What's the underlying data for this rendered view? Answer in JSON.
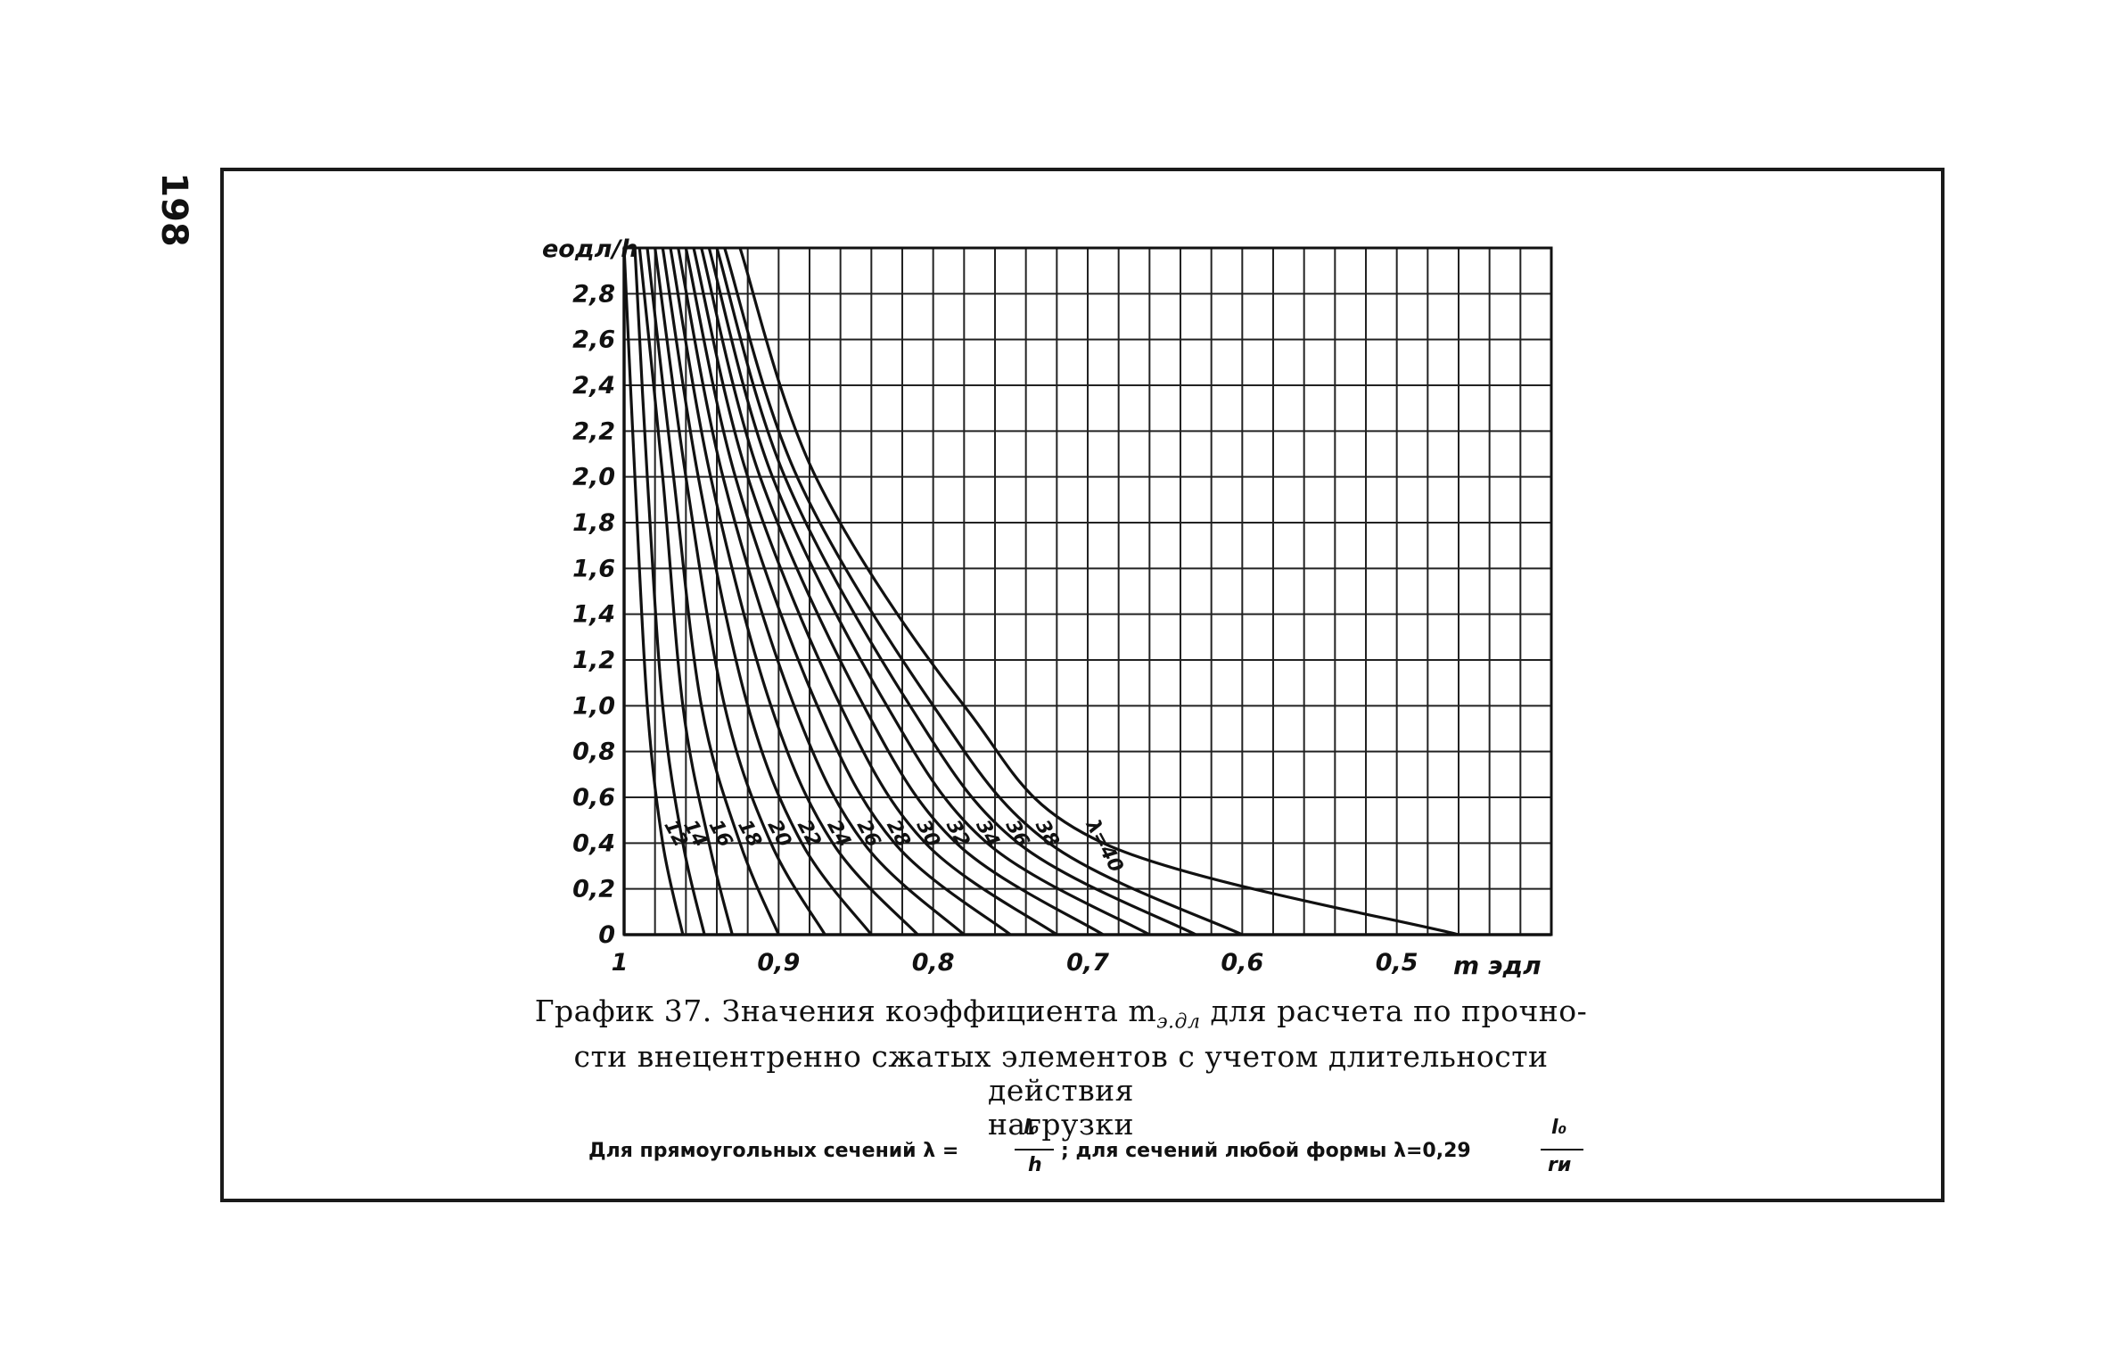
{
  "page_number": "198",
  "caption": {
    "line1": "График 37. Значения коэффициента m",
    "line1_subscript": "э.дл",
    "line1_end": " для расчета по прочно-",
    "line2": "сти внецентренно сжатых элементов с учетом длительности действия",
    "line3": "нагрузки"
  },
  "subnote": {
    "part1": "Для прямоугольных сечений λ =",
    "frac1_num": "l₀",
    "frac1_den": "h",
    "part2": ";   для сечений любой формы λ=0,29",
    "frac2_num": "l₀",
    "frac2_den": "rи"
  },
  "chart_data": {
    "type": "line",
    "title": "",
    "xlabel": "m эдл",
    "ylabel": "eодл/h",
    "xlim": [
      1.0,
      0.4
    ],
    "ylim": [
      0,
      3.0
    ],
    "x_reversed": true,
    "x_ticks": [
      "1",
      "0,9",
      "0,8",
      "0,7",
      "0,6",
      "0,5"
    ],
    "y_ticks": [
      "0",
      "0,2",
      "0,4",
      "0,6",
      "0,8",
      "1,0",
      "1,2",
      "1,4",
      "1,6",
      "1,8",
      "2,0",
      "2,2",
      "2,4",
      "2,6",
      "2,8"
    ],
    "grid": true,
    "series_label_prefix": "λ=",
    "series": [
      {
        "name": "12",
        "x": [
          1.0,
          0.993,
          0.985,
          0.975,
          0.962
        ],
        "y": [
          3.0,
          2.0,
          1.0,
          0.4,
          0.0
        ]
      },
      {
        "name": "14",
        "x": [
          0.993,
          0.985,
          0.975,
          0.962,
          0.948
        ],
        "y": [
          3.0,
          2.0,
          1.0,
          0.4,
          0.0
        ]
      },
      {
        "name": "16",
        "x": [
          0.99,
          0.975,
          0.962,
          0.945,
          0.93
        ],
        "y": [
          3.0,
          2.0,
          1.0,
          0.4,
          0.0
        ]
      },
      {
        "name": "18",
        "x": [
          0.985,
          0.968,
          0.95,
          0.925,
          0.9
        ],
        "y": [
          3.0,
          2.0,
          1.0,
          0.4,
          0.0
        ]
      },
      {
        "name": "20",
        "x": [
          0.98,
          0.96,
          0.935,
          0.905,
          0.87
        ],
        "y": [
          3.0,
          2.0,
          1.0,
          0.4,
          0.0
        ]
      },
      {
        "name": "22",
        "x": [
          0.975,
          0.952,
          0.92,
          0.885,
          0.84
        ],
        "y": [
          3.0,
          2.0,
          1.0,
          0.4,
          0.0
        ]
      },
      {
        "name": "24",
        "x": [
          0.97,
          0.944,
          0.905,
          0.865,
          0.81
        ],
        "y": [
          3.0,
          2.0,
          1.0,
          0.4,
          0.0
        ]
      },
      {
        "name": "26",
        "x": [
          0.965,
          0.936,
          0.89,
          0.845,
          0.78
        ],
        "y": [
          3.0,
          2.0,
          1.0,
          0.4,
          0.0
        ]
      },
      {
        "name": "28",
        "x": [
          0.96,
          0.928,
          0.875,
          0.825,
          0.75
        ],
        "y": [
          3.0,
          2.0,
          1.0,
          0.4,
          0.0
        ]
      },
      {
        "name": "30",
        "x": [
          0.955,
          0.92,
          0.86,
          0.805,
          0.72
        ],
        "y": [
          3.0,
          2.0,
          1.0,
          0.4,
          0.0
        ]
      },
      {
        "name": "32",
        "x": [
          0.95,
          0.912,
          0.845,
          0.785,
          0.69
        ],
        "y": [
          3.0,
          2.0,
          1.0,
          0.4,
          0.0
        ]
      },
      {
        "name": "34",
        "x": [
          0.945,
          0.904,
          0.83,
          0.765,
          0.66
        ],
        "y": [
          3.0,
          2.0,
          1.0,
          0.4,
          0.0
        ]
      },
      {
        "name": "36",
        "x": [
          0.94,
          0.896,
          0.815,
          0.745,
          0.63
        ],
        "y": [
          3.0,
          2.0,
          1.0,
          0.4,
          0.0
        ]
      },
      {
        "name": "38",
        "x": [
          0.935,
          0.888,
          0.8,
          0.725,
          0.6
        ],
        "y": [
          3.0,
          2.0,
          1.0,
          0.4,
          0.0
        ]
      },
      {
        "name": "40",
        "x": [
          0.925,
          0.876,
          0.78,
          0.69,
          0.46
        ],
        "y": [
          3.0,
          2.0,
          1.0,
          0.4,
          0.0
        ]
      }
    ]
  }
}
